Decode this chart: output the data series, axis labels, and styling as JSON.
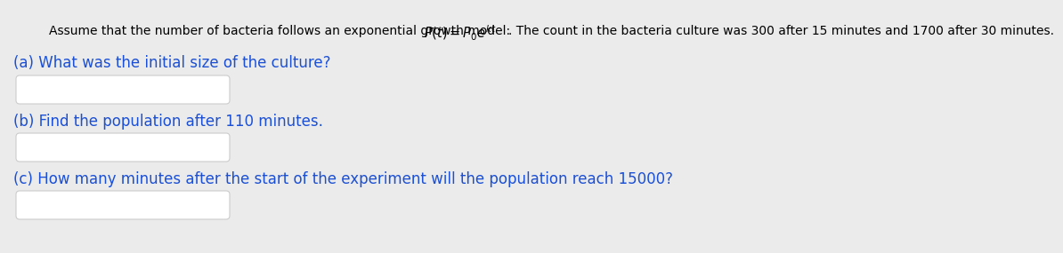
{
  "background_color": "#ebebeb",
  "intro_text_color": "#000000",
  "text_color": "#1a4fd6",
  "box_facecolor": "#ffffff",
  "box_edgecolor": "#cccccc",
  "font_size": 10.0,
  "label_font_size": 12.0,
  "part_a_label": "(a) What was the initial size of the culture?",
  "part_b_label": "(b) Find the population after 110 minutes.",
  "part_c_label": "(c) How many minutes after the start of the experiment will the population reach 15000?",
  "intro_prefix": "Assume that the number of bacteria follows an exponential growth model: ",
  "intro_suffix": ". The count in the bacteria culture was 300 after 15 minutes and 1700 after 30 minutes."
}
